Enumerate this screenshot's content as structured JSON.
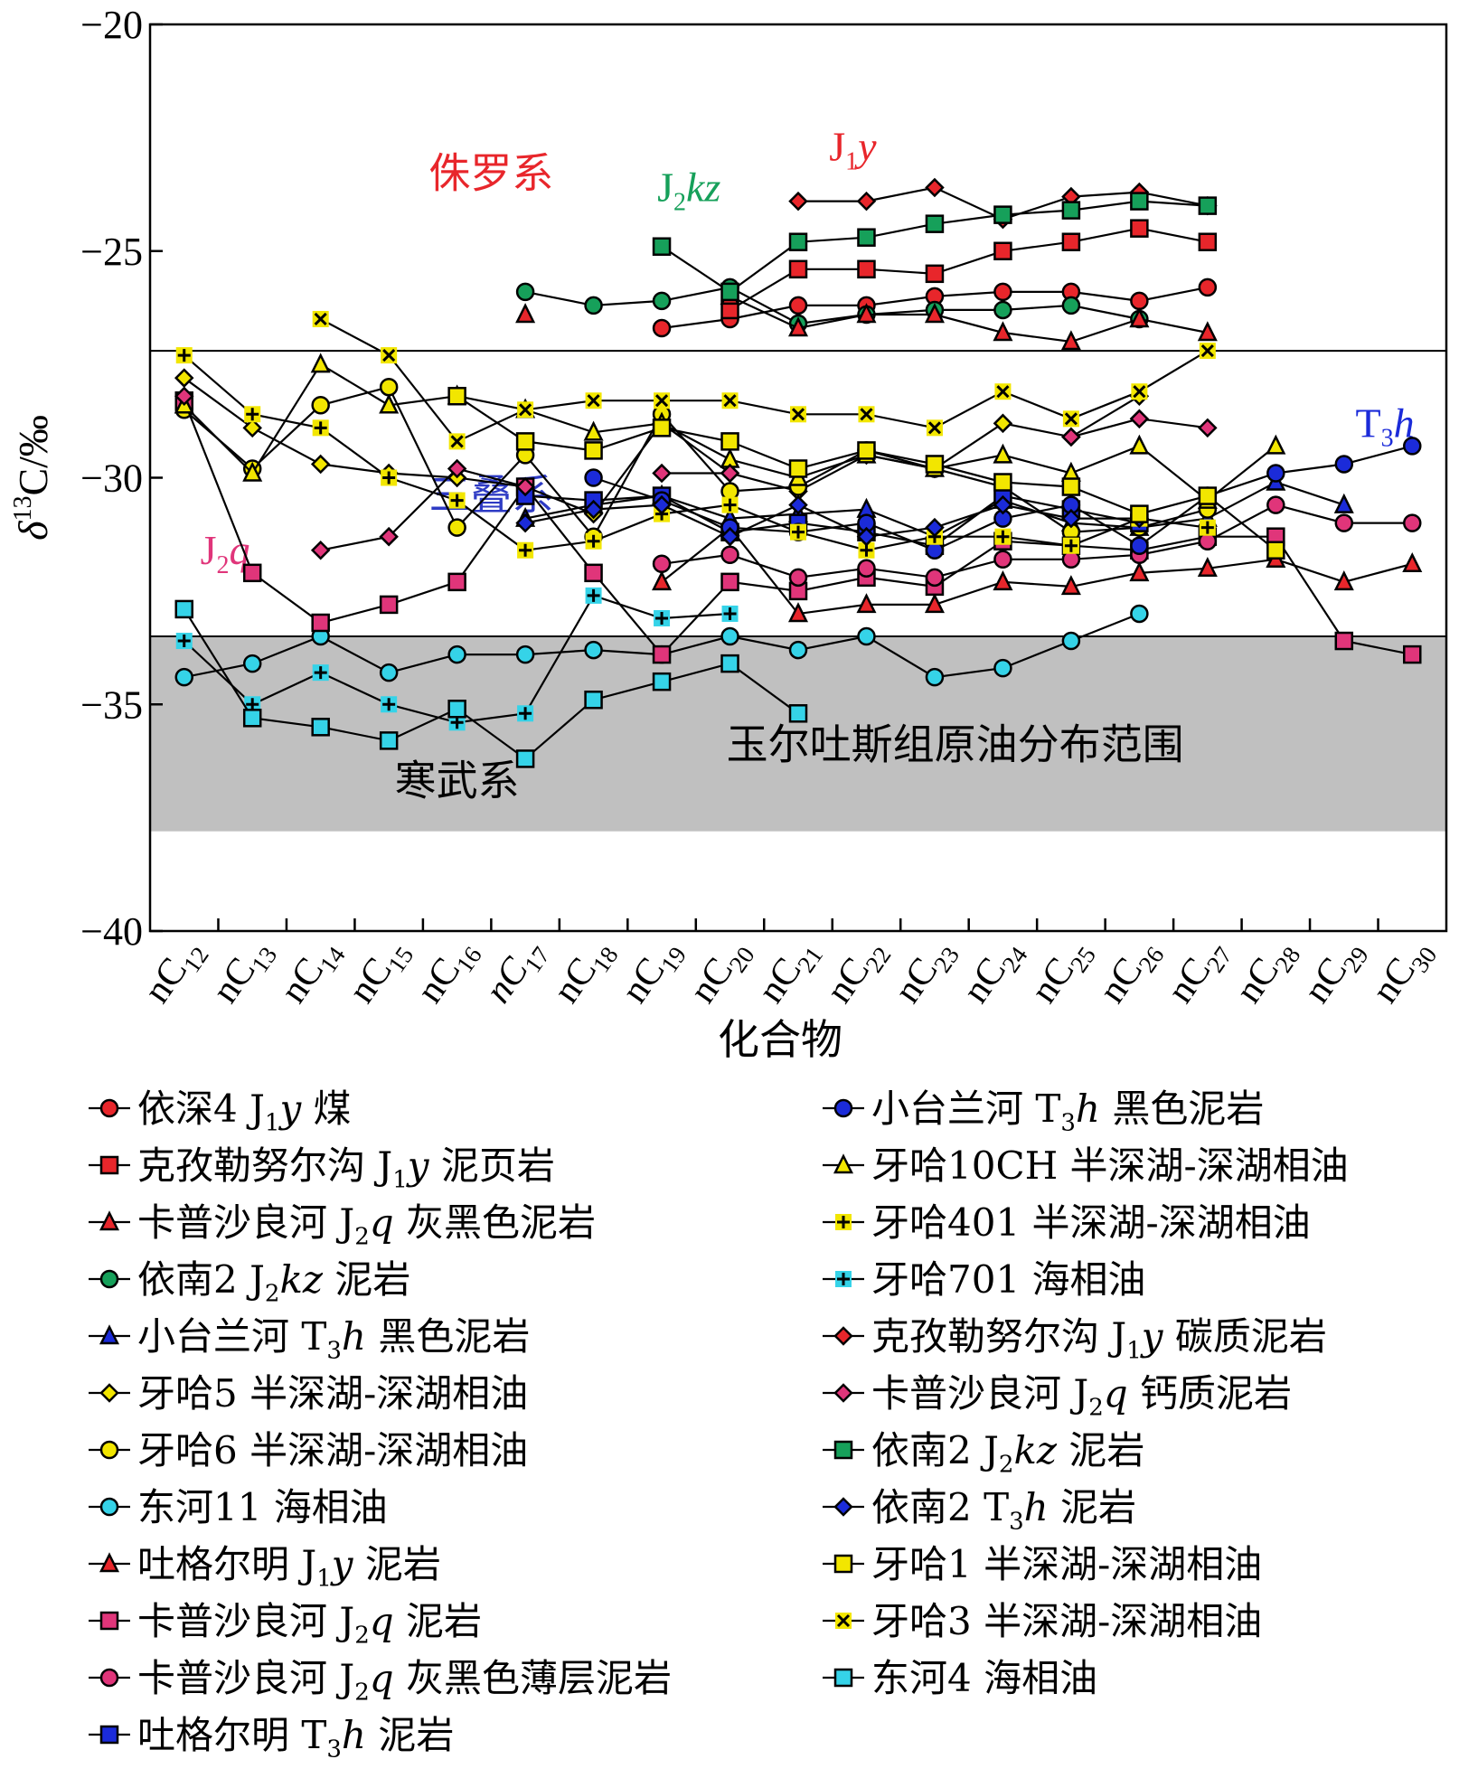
{
  "chart_data": {
    "type": "line",
    "xlabel": "化合物",
    "ylabel": "δ13C/‰",
    "ylabel_parts": {
      "delta": "δ",
      "sup": "13",
      "rest": "C/‰"
    },
    "ylim": [
      -40,
      -20
    ],
    "yticks": [
      -20,
      -25,
      -30,
      -35,
      -40
    ],
    "ytick_labels": [
      "−20",
      "−25",
      "−30",
      "−35",
      "−40"
    ],
    "categories": [
      "nC12",
      "nC13",
      "nC14",
      "nC15",
      "nC16",
      "nC17",
      "nC18",
      "nC19",
      "nC20",
      "nC21",
      "nC22",
      "nC23",
      "nC24",
      "nC25",
      "nC26",
      "nC27",
      "nC28",
      "nC29",
      "nC30"
    ],
    "category_subs": [
      "12",
      "13",
      "14",
      "15",
      "16",
      "17",
      "18",
      "19",
      "20",
      "21",
      "22",
      "23",
      "24",
      "25",
      "26",
      "27",
      "28",
      "29",
      "30"
    ],
    "category_prefix": "nC",
    "bands": [
      {
        "ymin": -37.8,
        "ymax": -33.5,
        "color": "#c0c0c0",
        "label": "玉尔吐斯组原油分布范围"
      }
    ],
    "hlines": [
      -27.2,
      -33.5
    ],
    "annotations": [
      {
        "text": "侏罗系",
        "color": "#e8262b",
        "x": 4.5,
        "y": -23.6
      },
      {
        "text": "三叠系",
        "color": "#2e3bc4",
        "x": 4.5,
        "y": -30.7
      },
      {
        "text": "寒武系",
        "color": "#000000",
        "x": 4.0,
        "y": -37.0
      },
      {
        "text": "玉尔吐斯组原油分布范围",
        "color": "#000000",
        "x": 11.3,
        "y": -36.2
      },
      {
        "text": "J",
        "sub": "2",
        "it": "kz",
        "color": "#16a05a",
        "x": 7.4,
        "y": -23.9
      },
      {
        "text": "J",
        "sub": "1",
        "it": "y",
        "color": "#e8262b",
        "x": 9.8,
        "y": -23.0
      },
      {
        "text": "J",
        "sub": "2",
        "it": "q",
        "color": "#e0357a",
        "x": 0.6,
        "y": -31.9
      },
      {
        "text": "T",
        "sub": "3",
        "it": "h",
        "color": "#1b2bd9",
        "x": 17.6,
        "y": -29.1
      }
    ],
    "series": [
      {
        "name": "依深4 J1y 煤",
        "marker": "circle",
        "color": "#e8262b",
        "values": [
          null,
          null,
          null,
          null,
          null,
          null,
          null,
          -26.7,
          -26.5,
          -26.2,
          -26.2,
          -26.0,
          -25.9,
          -25.9,
          -26.1,
          -25.8,
          null,
          null,
          null
        ]
      },
      {
        "name": "克孜勒努尔沟 J1y 泥页岩",
        "marker": "square",
        "color": "#e8262b",
        "values": [
          null,
          null,
          null,
          null,
          null,
          null,
          null,
          null,
          -26.3,
          -25.4,
          -25.4,
          -25.5,
          -25.0,
          -24.8,
          -24.5,
          -24.8,
          null,
          null,
          null
        ]
      },
      {
        "name": "卡普沙良河 J2q 灰黑色泥岩",
        "marker": "triangle",
        "color": "#e8262b",
        "values": [
          null,
          null,
          null,
          null,
          null,
          null,
          null,
          -32.3,
          -31.1,
          -33.0,
          -32.8,
          -32.8,
          -32.3,
          -32.4,
          -32.1,
          -32.0,
          -31.8,
          -32.3,
          -31.9
        ]
      },
      {
        "name": "依南2 J2kz 泥岩",
        "marker": "circle",
        "color": "#16a05a",
        "values": [
          null,
          null,
          null,
          null,
          null,
          -25.9,
          -26.2,
          -26.1,
          -25.8,
          -26.6,
          -26.4,
          -26.3,
          -26.3,
          -26.2,
          -26.5,
          null,
          null,
          null,
          null
        ]
      },
      {
        "name": "小台兰河 T3h 黑色泥岩",
        "marker": "triangle",
        "color": "#1b2bd9",
        "values": [
          null,
          null,
          null,
          null,
          null,
          -30.9,
          -30.6,
          -30.4,
          -30.9,
          -30.8,
          -30.7,
          -31.3,
          -30.5,
          -31.0,
          -31.1,
          -30.9,
          -30.1,
          -30.6,
          null
        ]
      },
      {
        "name": "牙哈5 半深湖-深湖相油",
        "marker": "diamond",
        "color": "#f2e600",
        "values": [
          -27.8,
          -28.9,
          -29.7,
          -29.9,
          -30.0,
          -30.2,
          -30.8,
          -28.8,
          -29.9,
          -30.3,
          -29.5,
          -29.8,
          -28.8,
          -29.1,
          -28.2,
          null,
          null,
          null,
          null
        ]
      },
      {
        "name": "牙哈6 半深湖-深湖相油",
        "marker": "circle",
        "color": "#f2e600",
        "values": [
          -28.5,
          -29.8,
          -28.4,
          -28.0,
          -31.1,
          -29.5,
          -31.3,
          -28.6,
          -30.3,
          -30.2,
          -29.4,
          -29.8,
          -30.2,
          -31.2,
          -31.1,
          -30.7,
          null,
          null,
          null
        ]
      },
      {
        "name": "东河11 海相油",
        "marker": "circle",
        "color": "#35d3e8",
        "values": [
          -34.4,
          -34.1,
          -33.5,
          -34.3,
          -33.9,
          -33.9,
          -33.8,
          -33.9,
          -33.5,
          -33.8,
          -33.5,
          -34.4,
          -34.2,
          -33.6,
          -33.0,
          null,
          null,
          null,
          null
        ]
      },
      {
        "name": "吐格尔明 J1y 泥岩",
        "marker": "triangle",
        "color": "#e8262b",
        "values": [
          null,
          null,
          null,
          null,
          null,
          -26.4,
          null,
          null,
          -26.0,
          -26.7,
          -26.4,
          -26.4,
          -26.8,
          -27.0,
          -26.5,
          -26.8,
          null,
          null,
          null
        ]
      },
      {
        "name": "卡普沙良河 J2q 泥岩",
        "marker": "square",
        "color": "#e0357a",
        "values": [
          -28.3,
          -32.1,
          -33.2,
          -32.8,
          -32.3,
          -30.2,
          -32.1,
          -33.9,
          -32.3,
          -32.5,
          -32.2,
          -32.4,
          -31.4,
          -31.5,
          -31.6,
          -31.3,
          -31.3,
          -33.6,
          -33.9
        ]
      },
      {
        "name": "卡普沙良河 J2q 灰黑色薄层泥岩",
        "marker": "circle",
        "color": "#e0357a",
        "values": [
          null,
          null,
          null,
          null,
          null,
          null,
          null,
          -31.9,
          -31.7,
          -32.2,
          -32.0,
          -32.2,
          -31.8,
          -31.8,
          -31.7,
          -31.4,
          -30.6,
          -31.0,
          -31.0
        ]
      },
      {
        "name": "吐格尔明 T3h 泥岩",
        "marker": "square",
        "color": "#1b2bd9",
        "values": [
          null,
          null,
          null,
          null,
          null,
          -30.4,
          -30.5,
          -30.4,
          -31.2,
          -31.0,
          -31.2,
          -31.5,
          -30.4,
          -30.7,
          -31.0,
          null,
          null,
          null,
          null
        ]
      },
      {
        "name": "小台兰河 T3h 黑色泥岩",
        "marker": "circle",
        "color": "#1b2bd9",
        "values": [
          null,
          null,
          null,
          null,
          null,
          null,
          -30.0,
          -30.5,
          -31.1,
          -31.2,
          -31.0,
          -31.6,
          -30.9,
          -30.6,
          -31.5,
          -30.4,
          -29.9,
          -29.7,
          -29.3
        ]
      },
      {
        "name": "牙哈10CH 半深湖-深湖相油",
        "marker": "triangle",
        "color": "#f2e600",
        "values": [
          -28.4,
          -29.9,
          -27.5,
          -28.4,
          -28.2,
          -28.5,
          -29.0,
          -28.8,
          -29.6,
          -30.0,
          -29.5,
          -29.8,
          -29.5,
          -29.9,
          -29.3,
          -30.5,
          -29.3,
          null,
          null
        ]
      },
      {
        "name": "牙哈401 半深湖-深湖相油",
        "marker": "plus",
        "color": "#f2e600",
        "values": [
          -27.3,
          -28.6,
          -28.9,
          -30.0,
          -30.5,
          -31.6,
          -31.4,
          -30.8,
          -30.6,
          -31.2,
          -31.6,
          -31.3,
          -31.3,
          -31.5,
          -30.9,
          -31.1,
          null,
          null,
          null
        ]
      },
      {
        "name": "牙哈701 海相油",
        "marker": "plus",
        "color": "#35d3e8",
        "values": [
          -33.6,
          -35.0,
          -34.3,
          -35.0,
          -35.4,
          -35.2,
          -32.6,
          -33.1,
          -33.0,
          null,
          null,
          null,
          null,
          null,
          null,
          null,
          null,
          null,
          null
        ]
      },
      {
        "name": "克孜勒努尔沟 J1y 碳质泥岩",
        "marker": "diamond",
        "color": "#e8262b",
        "values": [
          null,
          null,
          null,
          null,
          null,
          null,
          null,
          null,
          null,
          -23.9,
          -23.9,
          -23.6,
          -24.3,
          -23.8,
          -23.7,
          -24.0,
          null,
          null,
          null
        ]
      },
      {
        "name": "卡普沙良河 J2q 钙质泥岩",
        "marker": "diamond",
        "color": "#e0357a",
        "values": [
          -28.2,
          null,
          -31.6,
          -31.3,
          -29.8,
          -30.2,
          null,
          -29.9,
          -29.9,
          null,
          null,
          null,
          null,
          -29.1,
          -28.7,
          -28.9,
          null,
          null,
          null
        ]
      },
      {
        "name": "依南2 J2kz 泥岩",
        "marker": "square",
        "color": "#16a05a",
        "values": [
          null,
          null,
          null,
          null,
          null,
          null,
          null,
          -24.9,
          -25.9,
          -24.8,
          -24.7,
          -24.4,
          -24.2,
          -24.1,
          -23.9,
          -24.0,
          null,
          null,
          null
        ]
      },
      {
        "name": "依南2 T3h 泥岩",
        "marker": "diamond",
        "color": "#1b2bd9",
        "values": [
          null,
          null,
          null,
          null,
          null,
          -31.0,
          -30.7,
          -30.6,
          -31.3,
          -30.6,
          -31.3,
          -31.1,
          -30.6,
          -30.9,
          -30.9,
          null,
          null,
          null,
          null
        ]
      },
      {
        "name": "牙哈1 半深湖-深湖相油",
        "marker": "square",
        "color": "#f2e600",
        "values": [
          null,
          null,
          null,
          null,
          -28.2,
          -29.2,
          -29.4,
          -28.9,
          -29.2,
          -29.8,
          -29.4,
          -29.7,
          -30.1,
          -30.2,
          -30.8,
          -30.4,
          -31.6,
          null,
          null
        ]
      },
      {
        "name": "牙哈3 半深湖-深湖相油",
        "marker": "cross",
        "color": "#f2e600",
        "values": [
          null,
          null,
          -26.5,
          -27.3,
          -29.2,
          -28.5,
          -28.3,
          -28.3,
          -28.3,
          -28.6,
          -28.6,
          -28.9,
          -28.1,
          -28.7,
          -28.1,
          -27.2,
          null,
          null,
          null
        ]
      },
      {
        "name": "东河4 海相油",
        "marker": "square",
        "color": "#35d3e8",
        "values": [
          -32.9,
          -35.3,
          -35.5,
          -35.8,
          -35.1,
          -36.2,
          -34.9,
          -34.5,
          -34.1,
          -35.2,
          null,
          null,
          null,
          null,
          null,
          null,
          null,
          null,
          null
        ]
      }
    ]
  },
  "legend": {
    "left": [
      {
        "pre": "依深4 J",
        "sub": "1",
        "it": "y",
        "post": " 煤",
        "series": 0
      },
      {
        "pre": "克孜勒努尔沟 J",
        "sub": "1",
        "it": "y",
        "post": " 泥页岩",
        "series": 1
      },
      {
        "pre": "卡普沙良河 J",
        "sub": "2",
        "it": "q",
        "post": " 灰黑色泥岩",
        "series": 2
      },
      {
        "pre": "依南2 J",
        "sub": "2",
        "it": "kz",
        "post": " 泥岩",
        "series": 3
      },
      {
        "pre": "小台兰河 T",
        "sub": "3",
        "it": "h",
        "post": " 黑色泥岩",
        "series": 4
      },
      {
        "pre": "牙哈5 半深湖-深湖相油",
        "sub": "",
        "it": "",
        "post": "",
        "series": 5
      },
      {
        "pre": "牙哈6 半深湖-深湖相油",
        "sub": "",
        "it": "",
        "post": "",
        "series": 6
      },
      {
        "pre": "东河11 海相油",
        "sub": "",
        "it": "",
        "post": "",
        "series": 7
      },
      {
        "pre": "吐格尔明 J",
        "sub": "1",
        "it": "y",
        "post": " 泥岩",
        "series": 8
      },
      {
        "pre": "卡普沙良河 J",
        "sub": "2",
        "it": "q",
        "post": " 泥岩",
        "series": 9
      },
      {
        "pre": "卡普沙良河 J",
        "sub": "2",
        "it": "q",
        "post": " 灰黑色薄层泥岩",
        "series": 10
      },
      {
        "pre": "吐格尔明 T",
        "sub": "3",
        "it": "h",
        "post": " 泥岩",
        "series": 11
      }
    ],
    "right": [
      {
        "pre": "小台兰河 T",
        "sub": "3",
        "it": "h",
        "post": " 黑色泥岩",
        "series": 12
      },
      {
        "pre": "牙哈10CH 半深湖-深湖相油",
        "sub": "",
        "it": "",
        "post": "",
        "series": 13
      },
      {
        "pre": "牙哈401 半深湖-深湖相油",
        "sub": "",
        "it": "",
        "post": "",
        "series": 14
      },
      {
        "pre": "牙哈701 海相油",
        "sub": "",
        "it": "",
        "post": "",
        "series": 15
      },
      {
        "pre": "克孜勒努尔沟 J",
        "sub": "1",
        "it": "y",
        "post": " 碳质泥岩",
        "series": 16
      },
      {
        "pre": "卡普沙良河 J",
        "sub": "2",
        "it": "q",
        "post": " 钙质泥岩",
        "series": 17
      },
      {
        "pre": "依南2 J",
        "sub": "2",
        "it": "kz",
        "post": " 泥岩",
        "series": 18
      },
      {
        "pre": "依南2 T",
        "sub": "3",
        "it": "h",
        "post": " 泥岩",
        "series": 19
      },
      {
        "pre": "牙哈1 半深湖-深湖相油",
        "sub": "",
        "it": "",
        "post": "",
        "series": 20
      },
      {
        "pre": "牙哈3 半深湖-深湖相油",
        "sub": "",
        "it": "",
        "post": "",
        "series": 21
      },
      {
        "pre": "东河4 海相油",
        "sub": "",
        "it": "",
        "post": "",
        "series": 22
      }
    ]
  }
}
